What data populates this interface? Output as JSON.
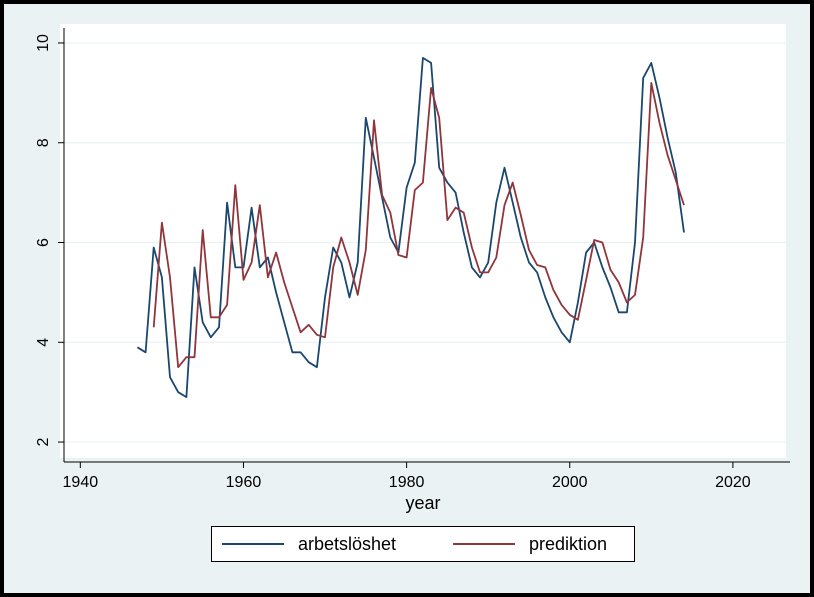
{
  "chart_data": {
    "type": "line",
    "xlabel": "year",
    "ylabel": "",
    "xlim": [
      1938,
      2027
    ],
    "ylim": [
      1.6,
      10.3
    ],
    "xticks": [
      1940,
      1960,
      1980,
      2000,
      2020
    ],
    "yticks": [
      2,
      4,
      6,
      8,
      10
    ],
    "grid": "horizontal",
    "legend_position": "bottom",
    "series": [
      {
        "name": "arbetslöshet",
        "color": "#1a476f",
        "x": [
          1947,
          1948,
          1949,
          1950,
          1951,
          1952,
          1953,
          1954,
          1955,
          1956,
          1957,
          1958,
          1959,
          1960,
          1961,
          1962,
          1963,
          1964,
          1965,
          1966,
          1967,
          1968,
          1969,
          1970,
          1971,
          1972,
          1973,
          1974,
          1975,
          1976,
          1977,
          1978,
          1979,
          1980,
          1981,
          1982,
          1983,
          1984,
          1985,
          1986,
          1987,
          1988,
          1989,
          1990,
          1991,
          1992,
          1993,
          1994,
          1995,
          1996,
          1997,
          1998,
          1999,
          2000,
          2001,
          2002,
          2003,
          2004,
          2005,
          2006,
          2007,
          2008,
          2009,
          2010,
          2011,
          2012,
          2013,
          2014
        ],
        "values": [
          3.9,
          3.8,
          5.9,
          5.3,
          3.3,
          3.0,
          2.9,
          5.5,
          4.4,
          4.1,
          4.3,
          6.8,
          5.5,
          5.5,
          6.7,
          5.5,
          5.7,
          5.0,
          4.4,
          3.8,
          3.8,
          3.6,
          3.5,
          4.9,
          5.9,
          5.6,
          4.9,
          5.6,
          8.5,
          7.7,
          6.9,
          6.1,
          5.8,
          7.1,
          7.6,
          9.7,
          9.6,
          7.5,
          7.2,
          7.0,
          6.2,
          5.5,
          5.3,
          5.6,
          6.8,
          7.5,
          6.8,
          6.1,
          5.6,
          5.4,
          4.9,
          4.5,
          4.2,
          4.0,
          4.8,
          5.8,
          6.0,
          5.5,
          5.1,
          4.6,
          4.6,
          6.0,
          9.3,
          9.6,
          8.9,
          8.1,
          7.4,
          6.2
        ]
      },
      {
        "name": "prediktion",
        "color": "#90353b",
        "x": [
          1949,
          1950,
          1951,
          1952,
          1953,
          1954,
          1955,
          1956,
          1957,
          1958,
          1959,
          1960,
          1961,
          1962,
          1963,
          1964,
          1965,
          1966,
          1967,
          1968,
          1969,
          1970,
          1971,
          1972,
          1973,
          1974,
          1975,
          1976,
          1977,
          1978,
          1979,
          1980,
          1981,
          1982,
          1983,
          1984,
          1985,
          1986,
          1987,
          1988,
          1989,
          1990,
          1991,
          1992,
          1993,
          1994,
          1995,
          1996,
          1997,
          1998,
          1999,
          2000,
          2001,
          2002,
          2003,
          2004,
          2005,
          2006,
          2007,
          2008,
          2009,
          2010,
          2011,
          2012,
          2013,
          2014
        ],
        "values": [
          4.3,
          6.4,
          5.3,
          3.5,
          3.7,
          3.7,
          6.25,
          4.5,
          4.5,
          4.75,
          7.15,
          5.25,
          5.6,
          6.75,
          5.3,
          5.8,
          5.2,
          4.7,
          4.2,
          4.35,
          4.15,
          4.1,
          5.5,
          6.1,
          5.6,
          4.95,
          5.85,
          8.45,
          6.95,
          6.6,
          5.75,
          5.7,
          7.05,
          7.2,
          9.1,
          8.5,
          6.45,
          6.7,
          6.6,
          5.9,
          5.4,
          5.4,
          5.7,
          6.75,
          7.2,
          6.55,
          5.85,
          5.55,
          5.5,
          5.05,
          4.75,
          4.55,
          4.45,
          5.25,
          6.05,
          6.0,
          5.45,
          5.2,
          4.8,
          4.95,
          6.1,
          9.2,
          8.4,
          7.75,
          7.25,
          6.75
        ]
      }
    ]
  }
}
